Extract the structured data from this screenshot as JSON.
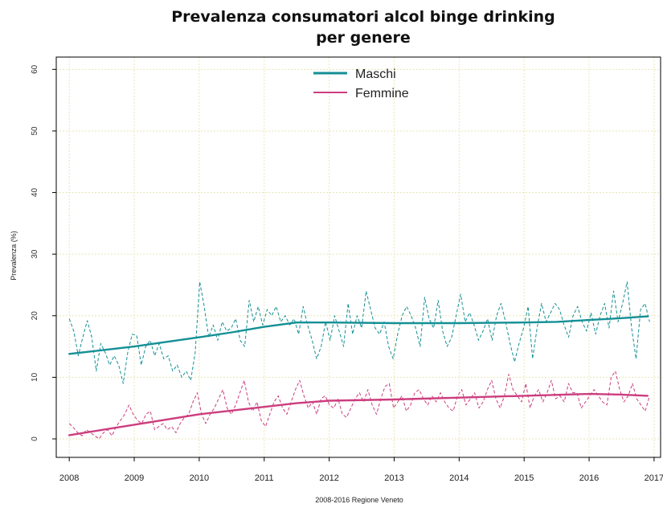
{
  "chart_data": {
    "type": "line",
    "title": [
      "Prevalenza consumatori alcol binge drinking",
      "per genere"
    ],
    "xlabel": "2008-2016 Regione Veneto",
    "ylabel": "Prevalenza (%)",
    "xlim": [
      2007.8,
      2017.1
    ],
    "ylim": [
      -3,
      62
    ],
    "xticks": [
      2008,
      2009,
      2010,
      2011,
      2012,
      2013,
      2014,
      2015,
      2016,
      2017
    ],
    "yticks": [
      0,
      10,
      20,
      30,
      40,
      50,
      60
    ],
    "grid": true,
    "legend_position": "top-center",
    "series": [
      {
        "name": "Maschi",
        "color": "#148f95",
        "trend_x": [
          2008,
          2009,
          2010,
          2010.5,
          2011,
          2011.5,
          2012,
          2013,
          2014,
          2015,
          2015.5,
          2016,
          2016.5,
          2016.9
        ],
        "trend_y": [
          13.8,
          15,
          16.5,
          17.3,
          18.2,
          18.9,
          18.9,
          18.8,
          18.8,
          18.9,
          19,
          19.3,
          19.6,
          19.9
        ],
        "monthly_y": [
          19.5,
          17.5,
          13.5,
          16.5,
          19.2,
          16.5,
          11,
          15.5,
          14,
          12,
          13.5,
          12,
          9,
          14,
          17,
          16.8,
          12,
          15,
          16,
          13.5,
          15.5,
          13,
          13.5,
          11,
          12,
          10,
          11,
          9.5,
          14,
          25.5,
          21.5,
          16.5,
          18.5,
          16,
          19,
          17.5,
          18,
          19.5,
          16,
          15,
          22.5,
          19,
          21.5,
          18.5,
          21,
          20,
          21.5,
          19,
          20,
          18.5,
          19.5,
          17,
          21.5,
          18.5,
          16,
          13,
          15,
          19,
          16,
          20,
          17.5,
          15,
          22,
          17,
          20,
          18,
          24,
          21,
          18,
          17,
          19,
          15,
          13,
          17,
          20,
          21.5,
          20,
          18,
          15,
          23,
          19.5,
          18,
          22.5,
          17.5,
          15,
          16.5,
          20,
          23.5,
          19,
          20.5,
          18.5,
          16,
          17.5,
          19.5,
          16,
          20,
          22,
          19,
          15.5,
          12.5,
          15.5,
          18,
          21.5,
          13,
          18,
          22,
          19,
          20.5,
          22,
          21,
          18.5,
          16.5,
          20,
          21.5,
          19,
          17.5,
          20.5,
          17,
          20,
          22,
          18,
          24,
          19,
          22,
          25.5,
          18,
          13,
          21,
          22,
          19
        ]
      },
      {
        "name": "Femmine",
        "color": "#cc3d7e",
        "trend_x": [
          2008,
          2009,
          2010,
          2011,
          2011.5,
          2012,
          2013,
          2014,
          2015,
          2016,
          2016.5,
          2016.9
        ],
        "trend_y": [
          0.6,
          2.3,
          4,
          5.2,
          5.8,
          6.2,
          6.4,
          6.7,
          7,
          7.3,
          7.2,
          7
        ],
        "monthly_y": [
          2.5,
          1.8,
          1,
          0.5,
          1.5,
          1,
          0.5,
          0,
          1,
          1.5,
          0.5,
          2,
          3,
          4,
          5.5,
          4,
          3,
          2.5,
          4,
          4.5,
          1.5,
          2,
          2.5,
          1.5,
          2,
          1,
          2.5,
          3.5,
          4,
          6,
          7.5,
          4,
          2.5,
          4,
          5,
          6.5,
          8,
          5,
          4,
          5.5,
          7.5,
          9.5,
          6,
          4.5,
          6,
          3,
          2,
          4,
          6,
          7,
          5,
          4,
          6,
          8,
          9.5,
          7,
          5,
          6,
          4,
          6.5,
          7,
          5.5,
          5,
          6.5,
          4,
          3.5,
          5,
          6.5,
          7.5,
          6,
          8,
          5.5,
          4,
          6.5,
          8.5,
          9,
          5,
          6,
          7,
          4.5,
          5.5,
          7.5,
          8,
          6.5,
          5.5,
          7,
          6,
          7.5,
          6,
          5,
          4.5,
          7,
          8,
          5.5,
          6.5,
          7.5,
          5,
          6,
          8,
          9.5,
          6.5,
          5,
          7,
          10.5,
          8,
          7,
          6,
          9,
          5,
          7,
          8,
          6,
          7.5,
          9.5,
          6.5,
          7,
          6,
          9,
          7.5,
          7.5,
          5,
          6,
          7,
          8,
          7,
          6,
          5.5,
          10,
          11,
          8,
          6,
          7,
          9,
          6.5,
          5.5,
          4.5,
          7
        ]
      }
    ]
  }
}
